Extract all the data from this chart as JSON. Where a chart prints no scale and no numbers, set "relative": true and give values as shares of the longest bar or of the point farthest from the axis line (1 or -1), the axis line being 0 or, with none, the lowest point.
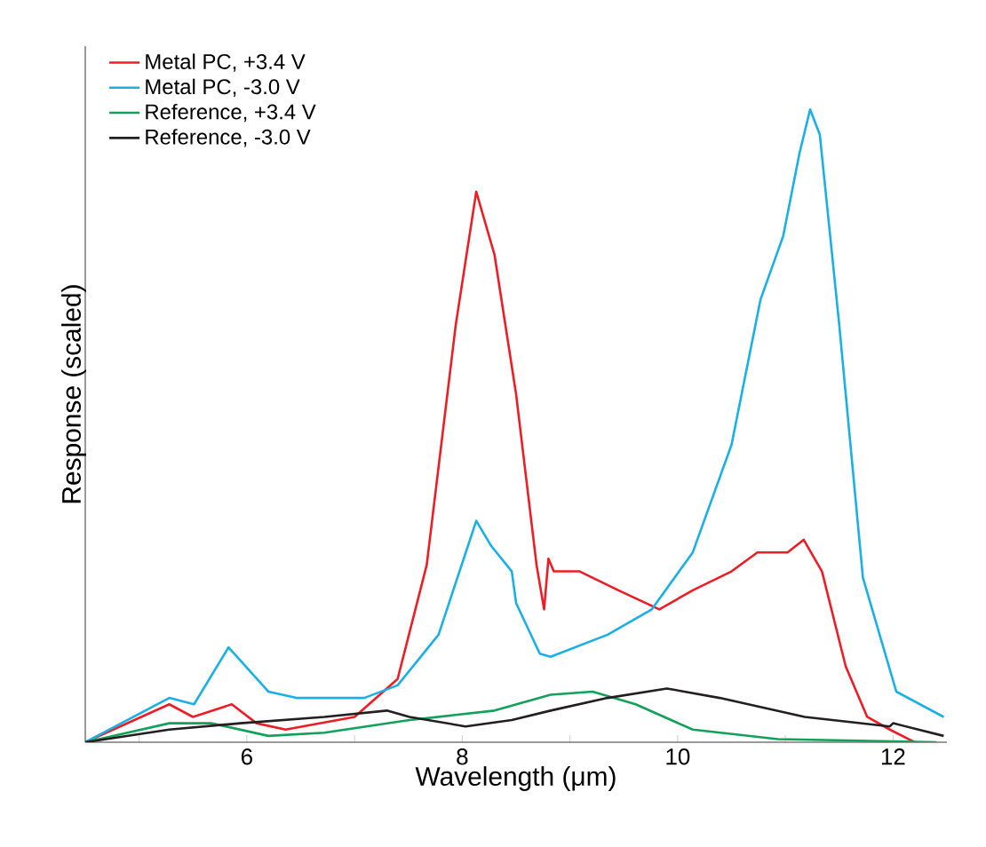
{
  "chart_data": {
    "type": "line",
    "relative": true,
    "xlabel": "Wavelength (μm)",
    "ylabel": "Response (scaled)",
    "xlim": [
      4.5,
      12.5
    ],
    "xticks": [
      {
        "value": 5,
        "label": null
      },
      6,
      {
        "value": 7,
        "label": null
      },
      8,
      {
        "value": 9,
        "label": null
      },
      10,
      {
        "value": 11,
        "label": null
      },
      12
    ],
    "legend": "top left",
    "grid": false,
    "series": [
      {
        "name": "Metal PC, +3.4 V",
        "color": "#ee1c25",
        "x": [
          4.5,
          5.28,
          5.5,
          5.86,
          6.09,
          6.36,
          7.0,
          7.4,
          7.67,
          7.94,
          8.13,
          8.3,
          8.5,
          8.69,
          8.76,
          8.8,
          8.85,
          9.09,
          9.45,
          9.83,
          10.14,
          10.5,
          10.74,
          10.87,
          11.02,
          11.17,
          11.34,
          11.56,
          11.76,
          11.97,
          12.2
        ],
        "values": [
          0,
          0.06,
          0.04,
          0.06,
          0.03,
          0.02,
          0.04,
          0.1,
          0.28,
          0.66,
          0.87,
          0.77,
          0.55,
          0.28,
          0.21,
          0.29,
          0.27,
          0.27,
          0.24,
          0.21,
          0.24,
          0.27,
          0.3,
          0.3,
          0.3,
          0.32,
          0.27,
          0.12,
          0.04,
          0.02,
          0
        ]
      },
      {
        "name": "Metal PC, -3.0 V",
        "color": "#1ab0e6",
        "x": [
          4.5,
          5.28,
          5.51,
          5.83,
          6.2,
          6.46,
          6.72,
          7.09,
          7.4,
          7.78,
          8.13,
          8.27,
          8.46,
          8.5,
          8.72,
          8.82,
          9.35,
          9.76,
          10.14,
          10.5,
          10.77,
          10.98,
          11.13,
          11.23,
          11.32,
          11.5,
          11.72,
          12.03,
          12.47
        ],
        "values": [
          0,
          0.07,
          0.06,
          0.15,
          0.08,
          0.07,
          0.07,
          0.07,
          0.09,
          0.17,
          0.35,
          0.31,
          0.27,
          0.22,
          0.14,
          0.135,
          0.17,
          0.21,
          0.3,
          0.47,
          0.7,
          0.8,
          0.93,
          1,
          0.96,
          0.66,
          0.26,
          0.08,
          0.04
        ]
      },
      {
        "name": "Reference, +3.4 V",
        "color": "#12a05a",
        "x": [
          4.5,
          5.28,
          5.67,
          6.2,
          6.72,
          7.51,
          8.3,
          8.82,
          9.21,
          9.61,
          10.14,
          10.93,
          12.4
        ],
        "values": [
          0,
          0.03,
          0.03,
          0.01,
          0.015,
          0.035,
          0.05,
          0.075,
          0.08,
          0.06,
          0.02,
          0.005,
          0
        ]
      },
      {
        "name": "Reference, -3.0 V",
        "color": "#231f20",
        "x": [
          4.5,
          5.28,
          5.94,
          6.72,
          7.3,
          7.51,
          8.03,
          8.46,
          8.82,
          9.35,
          9.9,
          10.39,
          11.18,
          11.97,
          12.0,
          12.47
        ],
        "values": [
          0,
          0.02,
          0.03,
          0.04,
          0.05,
          0.04,
          0.025,
          0.035,
          0.05,
          0.07,
          0.085,
          0.07,
          0.04,
          0.025,
          0.03,
          0.01
        ]
      }
    ]
  }
}
